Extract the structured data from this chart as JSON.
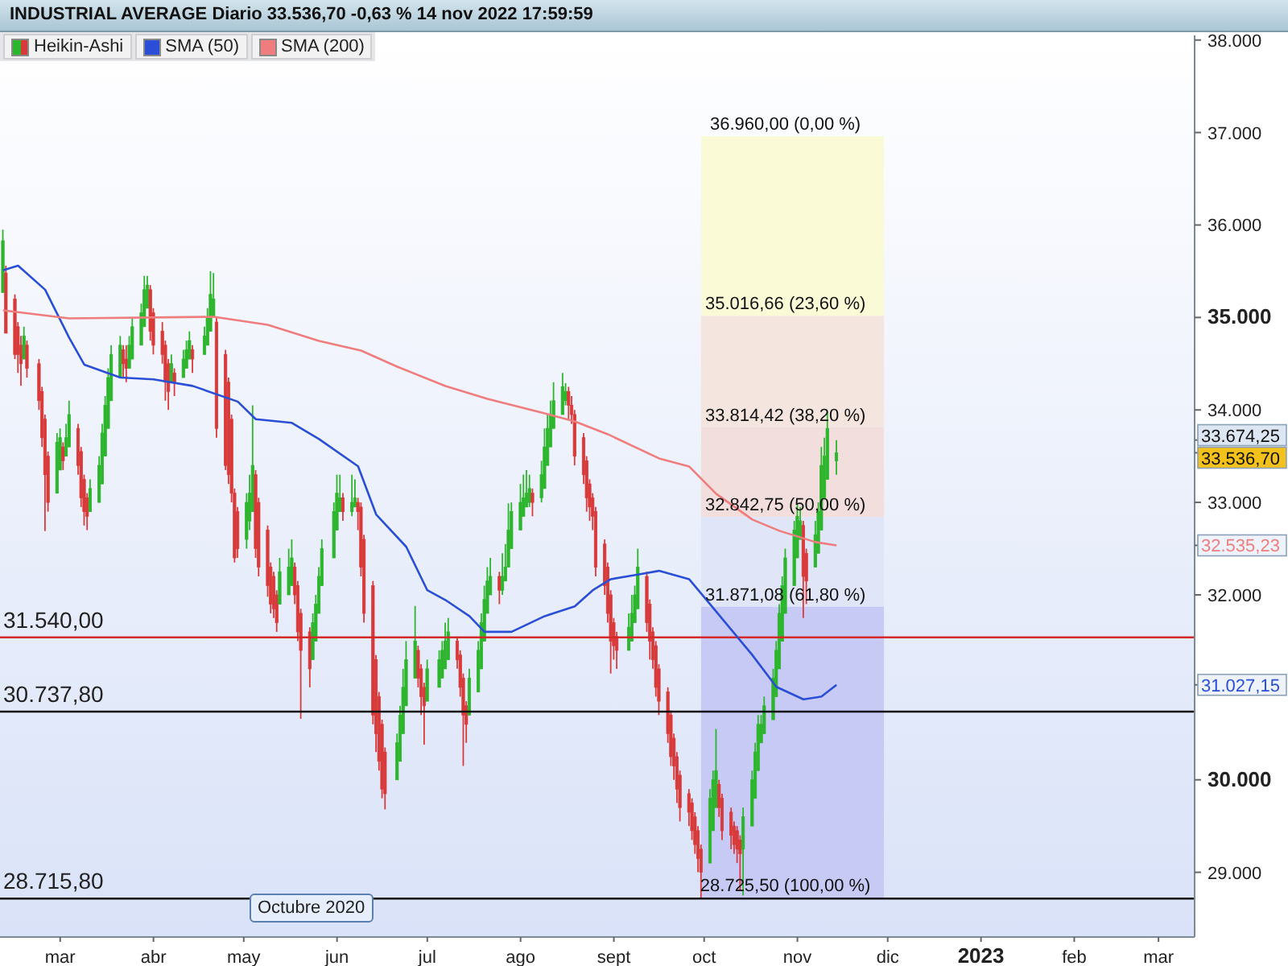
{
  "chart_data": {
    "type": "candlestick",
    "title": "INDUSTRIAL AVERAGE Diario 33.536,70 -0,63 % 14 nov 2022 17:59:59",
    "legend": "top left",
    "xlim": [
      "2022-02-09",
      "2023-03-13"
    ],
    "xticks": [
      {
        "value": "2022-03-01",
        "label": "mar"
      },
      {
        "value": "2022-04-01",
        "label": "abr"
      },
      {
        "value": "2022-05-01",
        "label": "may"
      },
      {
        "value": "2022-06-01",
        "label": "jun"
      },
      {
        "value": "2022-07-01",
        "label": "jul"
      },
      {
        "value": "2022-08-01",
        "label": "ago"
      },
      {
        "value": "2022-09-01",
        "label": "sept"
      },
      {
        "value": "2022-10-01",
        "label": "oct"
      },
      {
        "value": "2022-11-01",
        "label": "nov"
      },
      {
        "value": "2022-12-01",
        "label": "dic"
      },
      {
        "value": "2023-01-01",
        "label": "2023"
      },
      {
        "value": "2023-02-01",
        "label": "feb"
      },
      {
        "value": "2023-03-01",
        "label": "mar"
      }
    ],
    "ylim": [
      28300,
      38050
    ],
    "yticks": [
      {
        "value": 29000,
        "label": "29.000"
      },
      {
        "value": 30000,
        "label": "30.000"
      },
      {
        "value": 31027.15,
        "label": "31.027,15"
      },
      {
        "value": 32000,
        "label": "32.000"
      },
      {
        "value": 32535.23,
        "label": "32.535,23"
      },
      {
        "value": 33536.7,
        "label": "33.536,70"
      },
      {
        "value": 33674.25,
        "label": "33.674,25"
      },
      {
        "value": 33000,
        "label": "33.000"
      },
      {
        "value": 34000,
        "label": "34.000"
      },
      {
        "value": 35000,
        "label": "35.000"
      },
      {
        "value": 36000,
        "label": "36.000"
      },
      {
        "value": 37000,
        "label": "37.000"
      },
      {
        "value": 38000,
        "label": "38.000"
      }
    ],
    "x": [
      "2022-02-10",
      "2022-02-11",
      "2022-02-14",
      "2022-02-15",
      "2022-02-16",
      "2022-02-17",
      "2022-02-18",
      "2022-02-22",
      "2022-02-23",
      "2022-02-24",
      "2022-02-25",
      "2022-02-28",
      "2022-03-01",
      "2022-03-02",
      "2022-03-03",
      "2022-03-04",
      "2022-03-07",
      "2022-03-08",
      "2022-03-09",
      "2022-03-10",
      "2022-03-11",
      "2022-03-14",
      "2022-03-15",
      "2022-03-16",
      "2022-03-17",
      "2022-03-18",
      "2022-03-21",
      "2022-03-22",
      "2022-03-23",
      "2022-03-24",
      "2022-03-25",
      "2022-03-28",
      "2022-03-29",
      "2022-03-30",
      "2022-03-31",
      "2022-04-01",
      "2022-04-04",
      "2022-04-05",
      "2022-04-06",
      "2022-04-07",
      "2022-04-08",
      "2022-04-11",
      "2022-04-12",
      "2022-04-13",
      "2022-04-14",
      "2022-04-18",
      "2022-04-19",
      "2022-04-20",
      "2022-04-21",
      "2022-04-22",
      "2022-04-25",
      "2022-04-26",
      "2022-04-27",
      "2022-04-28",
      "2022-04-29",
      "2022-05-02",
      "2022-05-03",
      "2022-05-04",
      "2022-05-05",
      "2022-05-06",
      "2022-05-09",
      "2022-05-10",
      "2022-05-11",
      "2022-05-12",
      "2022-05-13",
      "2022-05-16",
      "2022-05-17",
      "2022-05-18",
      "2022-05-19",
      "2022-05-20",
      "2022-05-23",
      "2022-05-24",
      "2022-05-25",
      "2022-05-26",
      "2022-05-27",
      "2022-05-31",
      "2022-06-01",
      "2022-06-02",
      "2022-06-03",
      "2022-06-06",
      "2022-06-07",
      "2022-06-08",
      "2022-06-09",
      "2022-06-10",
      "2022-06-13",
      "2022-06-14",
      "2022-06-15",
      "2022-06-16",
      "2022-06-17",
      "2022-06-21",
      "2022-06-22",
      "2022-06-23",
      "2022-06-24",
      "2022-06-27",
      "2022-06-28",
      "2022-06-29",
      "2022-06-30",
      "2022-07-01",
      "2022-07-05",
      "2022-07-06",
      "2022-07-07",
      "2022-07-08",
      "2022-07-11",
      "2022-07-12",
      "2022-07-13",
      "2022-07-14",
      "2022-07-15",
      "2022-07-18",
      "2022-07-19",
      "2022-07-20",
      "2022-07-21",
      "2022-07-22",
      "2022-07-25",
      "2022-07-26",
      "2022-07-27",
      "2022-07-28",
      "2022-07-29",
      "2022-08-01",
      "2022-08-02",
      "2022-08-03",
      "2022-08-04",
      "2022-08-05",
      "2022-08-08",
      "2022-08-09",
      "2022-08-10",
      "2022-08-11",
      "2022-08-12",
      "2022-08-15",
      "2022-08-16",
      "2022-08-17",
      "2022-08-18",
      "2022-08-19",
      "2022-08-22",
      "2022-08-23",
      "2022-08-24",
      "2022-08-25",
      "2022-08-26",
      "2022-08-29",
      "2022-08-30",
      "2022-08-31",
      "2022-09-01",
      "2022-09-02",
      "2022-09-06",
      "2022-09-07",
      "2022-09-08",
      "2022-09-09",
      "2022-09-12",
      "2022-09-13",
      "2022-09-14",
      "2022-09-15",
      "2022-09-16",
      "2022-09-19",
      "2022-09-20",
      "2022-09-21",
      "2022-09-22",
      "2022-09-23",
      "2022-09-26",
      "2022-09-27",
      "2022-09-28",
      "2022-09-29",
      "2022-09-30",
      "2022-10-03",
      "2022-10-04",
      "2022-10-05",
      "2022-10-06",
      "2022-10-07",
      "2022-10-10",
      "2022-10-11",
      "2022-10-12",
      "2022-10-13",
      "2022-10-14",
      "2022-10-17",
      "2022-10-18",
      "2022-10-19",
      "2022-10-20",
      "2022-10-21",
      "2022-10-24",
      "2022-10-25",
      "2022-10-26",
      "2022-10-27",
      "2022-10-28",
      "2022-10-31",
      "2022-11-01",
      "2022-11-02",
      "2022-11-03",
      "2022-11-04",
      "2022-11-07",
      "2022-11-08",
      "2022-11-09",
      "2022-11-10",
      "2022-11-11",
      "2022-11-14"
    ],
    "series": [
      {
        "name": "Heikin-Ashi",
        "ohlc": [
          [
            35270,
            35950,
            35270,
            35830
          ],
          [
            35480,
            35560,
            34830,
            34830
          ],
          [
            35200,
            35250,
            34550,
            34600
          ],
          [
            34900,
            34950,
            34400,
            34600
          ],
          [
            34700,
            34800,
            34260,
            34500
          ],
          [
            34550,
            34900,
            34550,
            34800
          ],
          [
            34700,
            34750,
            34350,
            34450
          ],
          [
            34500,
            34550,
            34000,
            34100
          ],
          [
            34200,
            34250,
            33600,
            33700
          ],
          [
            33900,
            33950,
            32690,
            33300
          ],
          [
            33500,
            33550,
            32900,
            33000
          ],
          [
            33100,
            33750,
            33100,
            33650
          ],
          [
            33350,
            33800,
            33350,
            33700
          ],
          [
            33600,
            33650,
            33350,
            33450
          ],
          [
            33500,
            33850,
            33500,
            33700
          ],
          [
            33600,
            34100,
            33600,
            33950
          ],
          [
            33800,
            33850,
            33300,
            33400
          ],
          [
            33550,
            33600,
            32950,
            33050
          ],
          [
            33250,
            33300,
            32750,
            32900
          ],
          [
            33050,
            33100,
            32700,
            32850
          ],
          [
            32900,
            33250,
            32900,
            33150
          ],
          [
            33000,
            33500,
            33000,
            33400
          ],
          [
            33200,
            33850,
            33200,
            33750
          ],
          [
            33500,
            34150,
            33500,
            34050
          ],
          [
            33800,
            34450,
            33800,
            34350
          ],
          [
            34100,
            34700,
            34100,
            34600
          ],
          [
            34350,
            34800,
            34350,
            34700
          ],
          [
            34650,
            34700,
            34350,
            34500
          ],
          [
            34550,
            34700,
            34300,
            34450
          ],
          [
            34450,
            34800,
            34450,
            34700
          ],
          [
            34550,
            35000,
            34550,
            34900
          ],
          [
            34700,
            35150,
            34700,
            35050
          ],
          [
            34900,
            35450,
            34900,
            35300
          ],
          [
            35100,
            35450,
            35100,
            35350
          ],
          [
            35300,
            35350,
            34750,
            34850
          ],
          [
            35050,
            35100,
            34600,
            34700
          ],
          [
            34850,
            34950,
            34500,
            34600
          ],
          [
            34700,
            34750,
            34100,
            34300
          ],
          [
            34500,
            34550,
            34000,
            34200
          ],
          [
            34300,
            34600,
            34300,
            34500
          ],
          [
            34400,
            34450,
            34150,
            34300
          ],
          [
            34350,
            34650,
            34350,
            34550
          ],
          [
            34450,
            34750,
            34450,
            34650
          ],
          [
            34550,
            34850,
            34550,
            34750
          ],
          [
            34650,
            34700,
            34400,
            34550
          ],
          [
            34600,
            34900,
            34600,
            34800
          ],
          [
            34700,
            35100,
            34700,
            35000
          ],
          [
            34850,
            35500,
            34850,
            35250
          ],
          [
            35000,
            35480,
            35000,
            35200
          ],
          [
            34950,
            35000,
            33700,
            33800
          ],
          [
            34600,
            34650,
            33350,
            33400
          ],
          [
            34300,
            34350,
            33200,
            33300
          ],
          [
            33900,
            33950,
            33000,
            33100
          ],
          [
            33100,
            33150,
            32350,
            32400
          ],
          [
            32900,
            32950,
            32400,
            32500
          ],
          [
            32600,
            33100,
            32500,
            33000
          ],
          [
            32800,
            33300,
            32700,
            33100
          ],
          [
            32900,
            34050,
            32900,
            33400
          ],
          [
            33300,
            33350,
            32400,
            32500
          ],
          [
            33000,
            33050,
            32200,
            32300
          ],
          [
            32700,
            32750,
            31980,
            32100
          ],
          [
            32300,
            32350,
            31800,
            31900
          ],
          [
            32200,
            32250,
            31750,
            31850
          ],
          [
            32000,
            32050,
            31600,
            31700
          ],
          [
            31900,
            32400,
            31900,
            32250
          ],
          [
            32000,
            32500,
            32000,
            32300
          ],
          [
            32100,
            32600,
            32100,
            32400
          ],
          [
            32300,
            32350,
            31900,
            32000
          ],
          [
            32100,
            32150,
            31500,
            31600
          ],
          [
            31800,
            31850,
            30660,
            31400
          ],
          [
            31600,
            31650,
            31000,
            31200
          ],
          [
            31300,
            31800,
            31300,
            31700
          ],
          [
            31500,
            32000,
            31500,
            31900
          ],
          [
            31800,
            32300,
            31800,
            32200
          ],
          [
            32100,
            32600,
            32100,
            32500
          ],
          [
            32400,
            33000,
            32400,
            32900
          ],
          [
            32700,
            33300,
            32700,
            33100
          ],
          [
            32900,
            33300,
            32900,
            33050
          ],
          [
            33050,
            33100,
            32800,
            32900
          ],
          [
            32900,
            33300,
            32850,
            33000
          ],
          [
            32950,
            33250,
            32950,
            33050
          ],
          [
            33000,
            33050,
            32700,
            32900
          ],
          [
            32950,
            33000,
            32200,
            32300
          ],
          [
            32600,
            32650,
            31700,
            31800
          ],
          [
            32100,
            32150,
            30600,
            30700
          ],
          [
            31300,
            31350,
            30300,
            30500
          ],
          [
            30900,
            30950,
            30100,
            30200
          ],
          [
            30600,
            30650,
            29800,
            29900
          ],
          [
            30300,
            30350,
            29680,
            29850
          ],
          [
            30000,
            30500,
            30000,
            30400
          ],
          [
            30200,
            30800,
            30200,
            30700
          ],
          [
            30500,
            31200,
            30500,
            31000
          ],
          [
            30800,
            31500,
            30800,
            31300
          ],
          [
            31100,
            31880,
            31100,
            31500
          ],
          [
            31400,
            31450,
            31000,
            31100
          ],
          [
            31200,
            31250,
            30700,
            30900
          ],
          [
            31000,
            31050,
            30380,
            30800
          ],
          [
            30850,
            31300,
            30850,
            31200
          ],
          [
            31000,
            31400,
            31000,
            31300
          ],
          [
            31100,
            31500,
            31100,
            31400
          ],
          [
            31200,
            31700,
            31200,
            31500
          ],
          [
            31300,
            31750,
            31300,
            31600
          ],
          [
            31500,
            31550,
            31200,
            31300
          ],
          [
            31350,
            31400,
            30900,
            31000
          ],
          [
            31100,
            31150,
            30150,
            30700
          ],
          [
            30800,
            30850,
            30400,
            30600
          ],
          [
            30700,
            31200,
            30700,
            31100
          ],
          [
            30950,
            31500,
            30950,
            31400
          ],
          [
            31200,
            31800,
            31200,
            31700
          ],
          [
            31500,
            32100,
            31500,
            31950
          ],
          [
            31800,
            32300,
            31800,
            32150
          ],
          [
            32000,
            32400,
            32000,
            32200
          ],
          [
            32200,
            32250,
            31900,
            32050
          ],
          [
            32050,
            32450,
            32000,
            32200
          ],
          [
            32150,
            32550,
            32150,
            32300
          ],
          [
            32300,
            32990,
            32300,
            32700
          ],
          [
            32500,
            33000,
            32500,
            32900
          ],
          [
            32700,
            33200,
            32700,
            33000
          ],
          [
            32850,
            33300,
            32850,
            33050
          ],
          [
            32950,
            33350,
            32950,
            33100
          ],
          [
            33000,
            33300,
            32950,
            33150
          ],
          [
            33100,
            33150,
            32850,
            33000
          ],
          [
            33050,
            33450,
            33000,
            33300
          ],
          [
            33150,
            33800,
            33150,
            33600
          ],
          [
            33400,
            33950,
            33400,
            33800
          ],
          [
            33600,
            34100,
            33600,
            33950
          ],
          [
            33800,
            34300,
            33800,
            34100
          ],
          [
            33950,
            34400,
            33950,
            34250
          ],
          [
            34100,
            34290,
            34050,
            34200
          ],
          [
            34200,
            34250,
            33900,
            34050
          ],
          [
            34050,
            34150,
            33850,
            33950
          ],
          [
            33950,
            34000,
            33400,
            33500
          ],
          [
            33700,
            33750,
            33200,
            33300
          ],
          [
            33450,
            33500,
            32900,
            33050
          ],
          [
            33200,
            33250,
            32800,
            32950
          ],
          [
            33050,
            33100,
            32700,
            32850
          ],
          [
            32900,
            32950,
            32200,
            32300
          ],
          [
            32550,
            32600,
            32000,
            32100
          ],
          [
            32300,
            32350,
            31700,
            31800
          ],
          [
            32000,
            32050,
            31150,
            31500
          ],
          [
            31700,
            31750,
            31300,
            31450
          ],
          [
            31550,
            31600,
            31200,
            31400
          ],
          [
            31400,
            31800,
            31400,
            31650
          ],
          [
            31500,
            32000,
            31500,
            31800
          ],
          [
            31700,
            32100,
            31700,
            32000
          ],
          [
            31850,
            32500,
            31850,
            32300
          ],
          [
            32200,
            32250,
            31600,
            31700
          ],
          [
            31900,
            31950,
            31300,
            31500
          ],
          [
            31600,
            31650,
            31200,
            31300
          ],
          [
            31450,
            31500,
            30900,
            31000
          ],
          [
            31200,
            31250,
            30700,
            30850
          ],
          [
            30950,
            31000,
            30400,
            30500
          ],
          [
            30700,
            30750,
            30150,
            30250
          ],
          [
            30450,
            30500,
            30000,
            30150
          ],
          [
            30250,
            30300,
            29750,
            29900
          ],
          [
            30050,
            30100,
            29550,
            29700
          ],
          [
            29850,
            29900,
            29500,
            29650
          ],
          [
            29750,
            29800,
            29350,
            29450
          ],
          [
            29600,
            29650,
            29200,
            29300
          ],
          [
            29450,
            29500,
            29000,
            29150
          ],
          [
            29250,
            29300,
            28725.5,
            29000
          ],
          [
            29100,
            29900,
            29100,
            29800
          ],
          [
            29450,
            30100,
            29450,
            30000
          ],
          [
            29700,
            30550,
            29700,
            30100
          ],
          [
            29950,
            30000,
            29600,
            29700
          ],
          [
            29800,
            29850,
            29350,
            29450
          ],
          [
            29650,
            29700,
            29250,
            29400
          ],
          [
            29500,
            29550,
            29200,
            29300
          ],
          [
            29450,
            29500,
            29100,
            29250
          ],
          [
            29350,
            29400,
            28800,
            29200
          ],
          [
            29250,
            29700,
            28750,
            29600
          ],
          [
            29500,
            30100,
            29500,
            30000
          ],
          [
            29800,
            30400,
            29800,
            30300
          ],
          [
            30100,
            30700,
            30100,
            30600
          ],
          [
            30400,
            30700,
            30400,
            30600
          ],
          [
            30500,
            30900,
            30500,
            30800
          ],
          [
            30650,
            31200,
            30650,
            31100
          ],
          [
            30900,
            31500,
            30900,
            31400
          ],
          [
            31200,
            31900,
            31200,
            31800
          ],
          [
            31500,
            32200,
            31500,
            32100
          ],
          [
            31800,
            32500,
            31800,
            32400
          ],
          [
            32100,
            32800,
            32100,
            32700
          ],
          [
            32400,
            32990,
            32400,
            32850
          ],
          [
            32600,
            32950,
            32600,
            32800
          ],
          [
            32750,
            32800,
            31750,
            32200
          ],
          [
            32450,
            32500,
            31900,
            32150
          ],
          [
            32300,
            32800,
            32300,
            32650
          ],
          [
            32450,
            33000,
            32450,
            32900
          ],
          [
            32700,
            33600,
            32700,
            33400
          ],
          [
            33050,
            33700,
            33050,
            33500
          ],
          [
            33250,
            33980,
            33250,
            33800
          ],
          [
            33450,
            33674.25,
            33300,
            33536.7
          ]
        ],
        "colors": [
          "#2db52d",
          "#d83a3a",
          "#d83a3a",
          "#d83a3a",
          "#d83a3a",
          "#2db52d",
          "#d83a3a",
          "#d83a3a",
          "#d83a3a",
          "#d83a3a",
          "#d83a3a",
          "#2db52d",
          "#2db52d",
          "#d83a3a",
          "#2db52d",
          "#2db52d",
          "#d83a3a",
          "#d83a3a",
          "#d83a3a",
          "#d83a3a",
          "#2db52d",
          "#2db52d",
          "#2db52d",
          "#2db52d",
          "#2db52d",
          "#2db52d",
          "#2db52d",
          "#d83a3a",
          "#d83a3a",
          "#2db52d",
          "#2db52d",
          "#2db52d",
          "#2db52d",
          "#2db52d",
          "#d83a3a",
          "#d83a3a",
          "#d83a3a",
          "#d83a3a",
          "#d83a3a",
          "#2db52d",
          "#d83a3a",
          "#2db52d",
          "#2db52d",
          "#2db52d",
          "#d83a3a",
          "#2db52d",
          "#2db52d",
          "#2db52d",
          "#2db52d",
          "#d83a3a",
          "#d83a3a",
          "#d83a3a",
          "#d83a3a",
          "#d83a3a",
          "#d83a3a",
          "#2db52d",
          "#2db52d",
          "#2db52d",
          "#d83a3a",
          "#d83a3a",
          "#d83a3a",
          "#d83a3a",
          "#d83a3a",
          "#d83a3a",
          "#2db52d",
          "#2db52d",
          "#2db52d",
          "#d83a3a",
          "#d83a3a",
          "#d83a3a",
          "#d83a3a",
          "#2db52d",
          "#2db52d",
          "#2db52d",
          "#2db52d",
          "#2db52d",
          "#2db52d",
          "#2db52d",
          "#d83a3a",
          "#2db52d",
          "#2db52d",
          "#d83a3a",
          "#d83a3a",
          "#d83a3a",
          "#d83a3a",
          "#d83a3a",
          "#d83a3a",
          "#d83a3a",
          "#d83a3a",
          "#2db52d",
          "#2db52d",
          "#2db52d",
          "#2db52d",
          "#2db52d",
          "#d83a3a",
          "#d83a3a",
          "#d83a3a",
          "#2db52d",
          "#2db52d",
          "#2db52d",
          "#2db52d",
          "#2db52d",
          "#d83a3a",
          "#d83a3a",
          "#d83a3a",
          "#d83a3a",
          "#2db52d",
          "#2db52d",
          "#2db52d",
          "#2db52d",
          "#2db52d",
          "#2db52d",
          "#d83a3a",
          "#2db52d",
          "#2db52d",
          "#2db52d",
          "#2db52d",
          "#2db52d",
          "#2db52d",
          "#2db52d",
          "#2db52d",
          "#d83a3a",
          "#2db52d",
          "#2db52d",
          "#2db52d",
          "#2db52d",
          "#2db52d",
          "#2db52d",
          "#2db52d",
          "#d83a3a",
          "#d83a3a",
          "#d83a3a",
          "#d83a3a",
          "#d83a3a",
          "#d83a3a",
          "#d83a3a",
          "#d83a3a",
          "#d83a3a",
          "#d83a3a",
          "#d83a3a",
          "#d83a3a",
          "#d83a3a",
          "#2db52d",
          "#2db52d",
          "#2db52d",
          "#2db52d",
          "#d83a3a",
          "#d83a3a",
          "#d83a3a",
          "#d83a3a",
          "#d83a3a",
          "#d83a3a",
          "#d83a3a",
          "#d83a3a",
          "#d83a3a",
          "#d83a3a",
          "#d83a3a",
          "#d83a3a",
          "#d83a3a",
          "#d83a3a",
          "#d83a3a",
          "#2db52d",
          "#2db52d",
          "#2db52d",
          "#d83a3a",
          "#d83a3a",
          "#d83a3a",
          "#d83a3a",
          "#d83a3a",
          "#d83a3a",
          "#2db52d",
          "#2db52d",
          "#2db52d",
          "#2db52d",
          "#2db52d",
          "#2db52d",
          "#2db52d",
          "#2db52d",
          "#2db52d",
          "#2db52d",
          "#2db52d",
          "#2db52d",
          "#2db52d",
          "#2db52d",
          "#d83a3a",
          "#d83a3a",
          "#2db52d",
          "#2db52d",
          "#2db52d",
          "#2db52d",
          "#2db52d",
          "#2db52d"
        ]
      },
      {
        "name": "SMA (50)",
        "type": "line",
        "color": "#2a4fd6",
        "x": [
          "2022-02-10",
          "2022-02-15",
          "2022-02-24",
          "2022-03-04",
          "2022-03-09",
          "2022-03-21",
          "2022-04-01",
          "2022-04-14",
          "2022-04-29",
          "2022-05-05",
          "2022-05-17",
          "2022-05-26",
          "2022-06-08",
          "2022-06-14",
          "2022-06-24",
          "2022-07-01",
          "2022-07-07",
          "2022-07-15",
          "2022-07-20",
          "2022-07-29",
          "2022-08-09",
          "2022-08-19",
          "2022-08-25",
          "2022-08-31",
          "2022-09-09",
          "2022-09-16",
          "2022-09-26",
          "2022-10-05",
          "2022-10-17",
          "2022-10-25",
          "2022-11-03",
          "2022-11-09",
          "2022-11-14"
        ],
        "values": [
          35510,
          35560,
          35300,
          34780,
          34490,
          34350,
          34330,
          34260,
          34090,
          33900,
          33860,
          33685,
          33390,
          32870,
          32520,
          32050,
          31945,
          31770,
          31600,
          31600,
          31770,
          31875,
          32050,
          32170,
          32220,
          32260,
          32170,
          31820,
          31350,
          31005,
          30870,
          30900,
          31027.15
        ]
      },
      {
        "name": "SMA (200)",
        "type": "line",
        "color": "#ef7d7d",
        "x": [
          "2022-02-10",
          "2022-03-04",
          "2022-04-21",
          "2022-05-09",
          "2022-05-26",
          "2022-06-09",
          "2022-06-21",
          "2022-07-07",
          "2022-07-21",
          "2022-08-09",
          "2022-08-19",
          "2022-08-30",
          "2022-09-16",
          "2022-09-26",
          "2022-10-05",
          "2022-10-17",
          "2022-10-26",
          "2022-11-07",
          "2022-11-14"
        ],
        "values": [
          35077,
          34990,
          35007,
          34920,
          34746,
          34642,
          34468,
          34259,
          34120,
          33963,
          33876,
          33737,
          33476,
          33389,
          33093,
          32815,
          32693,
          32571,
          32535.23
        ]
      }
    ],
    "bands": [
      {
        "axis": "y",
        "from": 35016.66,
        "to": 36960,
        "color": "#fafad6"
      },
      {
        "axis": "y",
        "from": 33814.42,
        "to": 35016.66,
        "color": "#f4e6de"
      },
      {
        "axis": "y",
        "from": 32842.75,
        "to": 33814.42,
        "color": "#f3dede"
      },
      {
        "axis": "y",
        "from": 31871.08,
        "to": 32842.75,
        "color": "#e0e6f8"
      },
      {
        "axis": "y",
        "from": 28725.5,
        "to": 31871.08,
        "color": "#c6caf4"
      }
    ],
    "ref_lines": [
      {
        "axis": "y",
        "value": 31540,
        "label": "31.540,00",
        "color": "#d42a2a"
      },
      {
        "axis": "y",
        "value": 30737.8,
        "label": "30.737,80",
        "color": "#111111"
      },
      {
        "axis": "y",
        "value": 28715.8,
        "label": "28.715,80",
        "color": "#111111"
      }
    ],
    "annotations": [
      {
        "text": "36.960,00 (0,00 %)",
        "x": "2022-10-28",
        "y": 36960
      },
      {
        "text": "35.016,66 (23,60 %)",
        "x": "2022-10-28",
        "y": 35016.66
      },
      {
        "text": "33.814,42 (38,20 %)",
        "x": "2022-10-28",
        "y": 33814.42
      },
      {
        "text": "32.842,75 (50,00 %)",
        "x": "2022-10-28",
        "y": 32842.75
      },
      {
        "text": "31.871,08 (61,80 %)",
        "x": "2022-10-28",
        "y": 31871.08
      },
      {
        "text": "28.725,50 (100,00 %)",
        "x": "2022-10-28",
        "y": 28725.5
      },
      "Octubre 2020"
    ]
  }
}
